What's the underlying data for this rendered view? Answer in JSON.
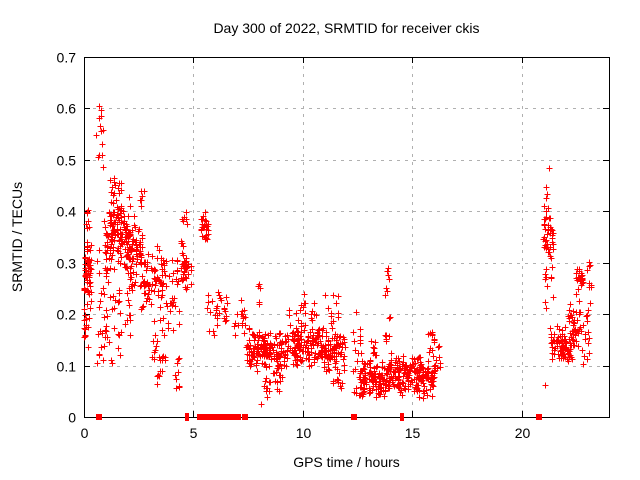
{
  "chart_data": {
    "type": "scatter",
    "title": "Day 300 of 2022, SRMTID for receiver ckis",
    "xlabel": "GPS time / hours",
    "ylabel": "SRMTID / TECUs",
    "xlim": [
      0,
      24
    ],
    "ylim": [
      0,
      0.7
    ],
    "xticks": {
      "values": [
        0,
        5,
        10,
        15,
        20
      ],
      "labels": [
        "0",
        "5",
        "10",
        "15",
        "20"
      ]
    },
    "yticks": {
      "values": [
        0,
        0.1,
        0.2,
        0.3,
        0.4,
        0.5,
        0.6,
        0.7
      ],
      "labels": [
        "0",
        "0.1",
        "0.2",
        "0.3",
        "0.4",
        "0.5",
        "0.6",
        "0.7"
      ]
    },
    "grid": true,
    "legend": "none",
    "marker": "plus",
    "marker_color": "#ff0000",
    "grid_color": "#b0b0b0",
    "axis_color": "#000000",
    "clusters": [
      [
        0.0,
        0.35,
        0.22,
        0.36,
        55,
        "c"
      ],
      [
        0.0,
        0.3,
        0.13,
        0.22,
        15,
        "u"
      ],
      [
        0.02,
        0.3,
        0.355,
        0.405,
        7,
        "u"
      ],
      [
        0.55,
        0.88,
        0.45,
        0.615,
        13,
        "u"
      ],
      [
        0.55,
        0.92,
        0.1,
        0.33,
        18,
        "u"
      ],
      [
        0.9,
        1.18,
        0.24,
        0.43,
        28,
        "c"
      ],
      [
        0.95,
        1.18,
        0.13,
        0.24,
        9,
        "u"
      ],
      [
        1.15,
        1.72,
        0.28,
        0.475,
        85,
        "c"
      ],
      [
        1.25,
        1.7,
        0.1,
        0.27,
        18,
        "u"
      ],
      [
        1.7,
        2.12,
        0.26,
        0.43,
        50,
        "c"
      ],
      [
        1.85,
        2.12,
        0.14,
        0.26,
        10,
        "u"
      ],
      [
        2.1,
        2.58,
        0.24,
        0.405,
        50,
        "c"
      ],
      [
        2.52,
        2.78,
        0.405,
        0.46,
        6,
        "u"
      ],
      [
        2.55,
        3.1,
        0.195,
        0.36,
        42,
        "c"
      ],
      [
        3.05,
        3.78,
        0.195,
        0.335,
        40,
        "c"
      ],
      [
        3.1,
        3.72,
        0.11,
        0.195,
        20,
        "u"
      ],
      [
        3.32,
        3.68,
        0.06,
        0.115,
        8,
        "u"
      ],
      [
        3.78,
        4.38,
        0.17,
        0.31,
        26,
        "u"
      ],
      [
        4.15,
        4.62,
        0.05,
        0.115,
        9,
        "u"
      ],
      [
        4.4,
        4.95,
        0.235,
        0.36,
        38,
        "c"
      ],
      [
        4.5,
        4.8,
        0.36,
        0.41,
        6,
        "u"
      ],
      [
        5.35,
        5.7,
        0.335,
        0.41,
        24,
        "c"
      ],
      [
        5.62,
        6.0,
        0.16,
        0.24,
        9,
        "u"
      ],
      [
        6.0,
        6.58,
        0.165,
        0.25,
        20,
        "c"
      ],
      [
        6.85,
        7.38,
        0.15,
        0.235,
        18,
        "c"
      ],
      [
        7.3,
        7.62,
        0.1,
        0.175,
        12,
        "u"
      ],
      [
        7.55,
        9.5,
        0.085,
        0.175,
        140,
        "c"
      ],
      [
        7.92,
        8.12,
        0.2,
        0.262,
        5,
        "u"
      ],
      [
        8.05,
        8.62,
        0.02,
        0.078,
        12,
        "u"
      ],
      [
        8.62,
        9.05,
        0.05,
        0.1,
        14,
        "u"
      ],
      [
        9.28,
        9.78,
        0.15,
        0.21,
        12,
        "u"
      ],
      [
        9.5,
        11.05,
        0.095,
        0.185,
        125,
        "c"
      ],
      [
        9.88,
        10.15,
        0.195,
        0.245,
        7,
        "u"
      ],
      [
        10.3,
        10.65,
        0.185,
        0.225,
        7,
        "u"
      ],
      [
        10.95,
        11.92,
        0.085,
        0.175,
        85,
        "c"
      ],
      [
        10.9,
        11.72,
        0.18,
        0.24,
        11,
        "u"
      ],
      [
        11.35,
        11.92,
        0.05,
        0.095,
        12,
        "u"
      ],
      [
        12.28,
        12.72,
        0.04,
        0.205,
        22,
        "u"
      ],
      [
        12.6,
        13.82,
        0.035,
        0.115,
        105,
        "c"
      ],
      [
        13.05,
        13.45,
        0.11,
        0.165,
        10,
        "u"
      ],
      [
        13.75,
        13.98,
        0.13,
        0.315,
        15,
        "u"
      ],
      [
        13.85,
        14.42,
        0.04,
        0.135,
        55,
        "c"
      ],
      [
        14.42,
        16.02,
        0.035,
        0.125,
        140,
        "c"
      ],
      [
        15.72,
        16.1,
        0.115,
        0.17,
        12,
        "u"
      ],
      [
        16.0,
        16.28,
        0.07,
        0.14,
        10,
        "u"
      ],
      [
        21.0,
        21.45,
        0.295,
        0.425,
        38,
        "c"
      ],
      [
        21.05,
        21.42,
        0.205,
        0.295,
        12,
        "u"
      ],
      [
        21.08,
        21.35,
        0.425,
        0.45,
        4,
        "u"
      ],
      [
        21.24,
        21.3,
        0.475,
        0.485,
        1,
        "u"
      ],
      [
        21.02,
        21.1,
        0.05,
        0.065,
        1,
        "u"
      ],
      [
        21.3,
        21.98,
        0.105,
        0.19,
        42,
        "c"
      ],
      [
        21.85,
        22.38,
        0.1,
        0.17,
        40,
        "c"
      ],
      [
        22.08,
        22.38,
        0.17,
        0.22,
        8,
        "u"
      ],
      [
        22.3,
        22.78,
        0.12,
        0.245,
        28,
        "c"
      ],
      [
        22.45,
        22.82,
        0.235,
        0.308,
        24,
        "c"
      ],
      [
        22.75,
        23.18,
        0.1,
        0.225,
        16,
        "u"
      ],
      [
        22.98,
        23.2,
        0.22,
        0.305,
        8,
        "u"
      ]
    ],
    "zero_squares": [
      0.7,
      5.28,
      5.36,
      5.55,
      5.63,
      5.71,
      5.85,
      6.12,
      6.2,
      6.4,
      6.55,
      6.68,
      6.95,
      7.03,
      7.35,
      12.32,
      20.78
    ],
    "zero_bars": [
      4.68,
      4.76,
      14.48,
      14.58
    ]
  }
}
